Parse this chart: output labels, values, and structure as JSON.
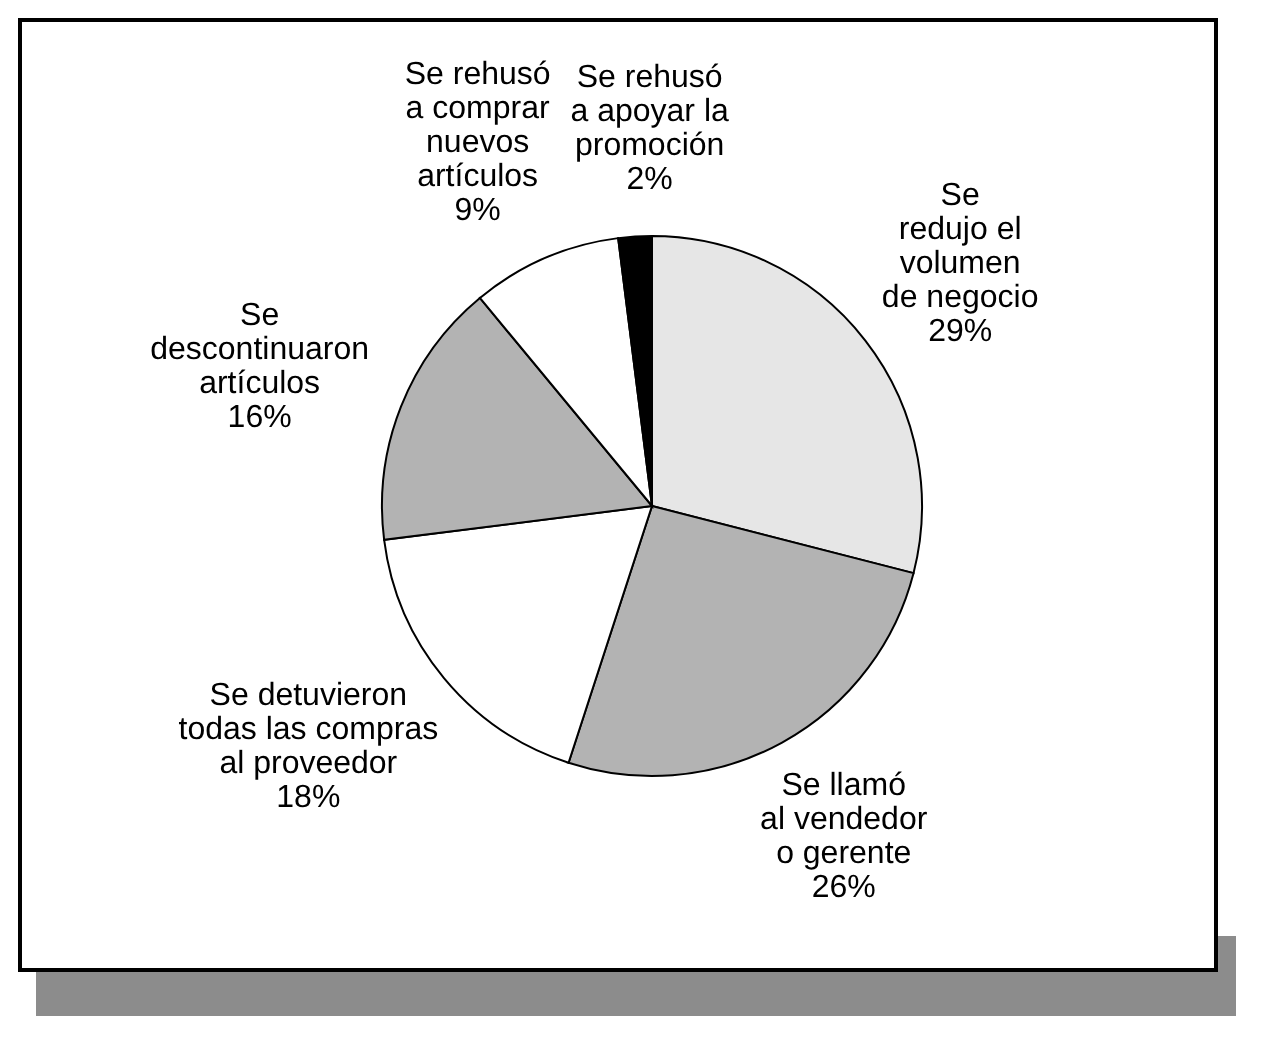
{
  "chart_data": {
    "type": "pie",
    "categories": [
      "Se\nredujo el\nvolumen\nde negocio",
      "Se llamó\nal vendedor\no gerente",
      "Se detuvieron\ntodas las compras\nal proveedor",
      "Se\ndescontinuaron\nartículos",
      "Se rehusó\na comprar\nnuevos\nartículos",
      "Se rehusó\na apoyar la\npromoción"
    ],
    "values": [
      29,
      26,
      18,
      16,
      9,
      2
    ],
    "colors": [
      "#e6e6e6",
      "#b3b3b3",
      "#ffffff",
      "#b3b3b3",
      "#ffffff",
      "#000000"
    ],
    "value_labels": [
      "29%",
      "26%",
      "18%",
      "16%",
      "9%",
      "2%"
    ]
  }
}
